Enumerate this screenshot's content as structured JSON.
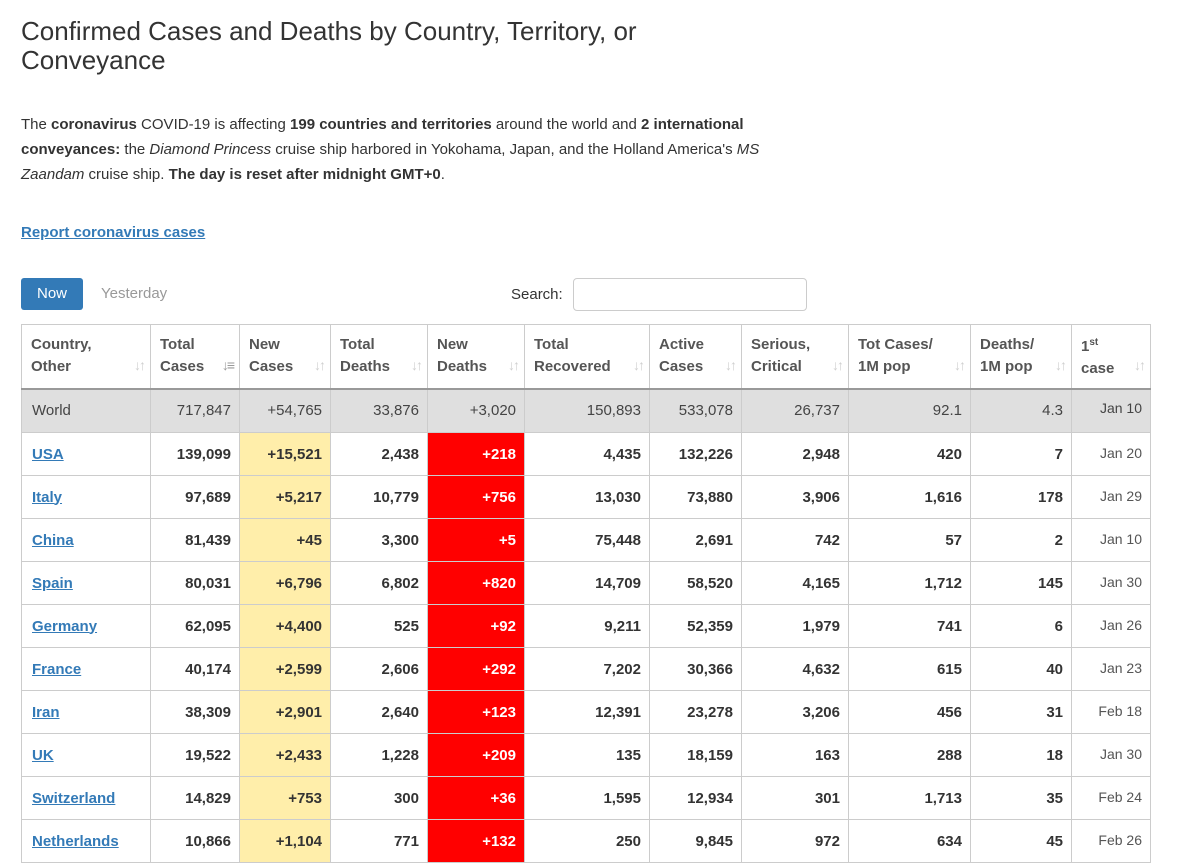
{
  "page": {
    "title": "Confirmed Cases and Deaths by Country, Territory, or Conveyance",
    "intro": {
      "p1": "The ",
      "b1": "coronavirus",
      "p2": " COVID-19 is affecting ",
      "b2": "199 countries and territories",
      "p3": " around the world and ",
      "b3": "2 international conveyances:",
      "p4": " the ",
      "i1": "Diamond Princess",
      "p5": " cruise ship harbored in Yokohama, Japan, and the Holland America's ",
      "i2": "MS Zaandam",
      "p6": " cruise ship. ",
      "b4": "The day is reset after midnight GMT+0",
      "p7": "."
    },
    "report_link": "Report coronavirus cases"
  },
  "tabs": {
    "now": "Now",
    "yesterday": "Yesterday",
    "active": "now"
  },
  "search": {
    "label": "Search:",
    "value": "",
    "placeholder": ""
  },
  "colors": {
    "link": "#337ab7",
    "new_cases_bg": "#ffeeaa",
    "new_deaths_bg": "#ff0000",
    "world_row_bg": "#dfdfdf"
  },
  "table": {
    "headers": [
      {
        "l1": "Country,",
        "l2": "Other",
        "sort": "none"
      },
      {
        "l1": "Total",
        "l2": "Cases",
        "sort": "desc"
      },
      {
        "l1": "New",
        "l2": "Cases",
        "sort": "none"
      },
      {
        "l1": "Total",
        "l2": "Deaths",
        "sort": "none"
      },
      {
        "l1": "New",
        "l2": "Deaths",
        "sort": "none"
      },
      {
        "l1": "Total",
        "l2": "Recovered",
        "sort": "none"
      },
      {
        "l1": "Active",
        "l2": "Cases",
        "sort": "none"
      },
      {
        "l1": "Serious,",
        "l2": "Critical",
        "sort": "none"
      },
      {
        "l1": "Tot Cases/",
        "l2": "1M pop",
        "sort": "none"
      },
      {
        "l1": "Deaths/",
        "l2": "1M pop",
        "sort": "none"
      },
      {
        "l1": "1",
        "sup": "st",
        "l2": "case",
        "sort": "none"
      }
    ],
    "world": {
      "country": "World",
      "total_cases": "717,847",
      "new_cases": "+54,765",
      "total_deaths": "33,876",
      "new_deaths": "+3,020",
      "total_recovered": "150,893",
      "active_cases": "533,078",
      "serious_critical": "26,737",
      "cases_per_1m": "92.1",
      "deaths_per_1m": "4.3",
      "first_case": "Jan 10"
    },
    "rows": [
      {
        "country": "USA",
        "total_cases": "139,099",
        "new_cases": "+15,521",
        "total_deaths": "2,438",
        "new_deaths": "+218",
        "total_recovered": "4,435",
        "active_cases": "132,226",
        "serious_critical": "2,948",
        "cases_per_1m": "420",
        "deaths_per_1m": "7",
        "first_case": "Jan 20"
      },
      {
        "country": "Italy",
        "total_cases": "97,689",
        "new_cases": "+5,217",
        "total_deaths": "10,779",
        "new_deaths": "+756",
        "total_recovered": "13,030",
        "active_cases": "73,880",
        "serious_critical": "3,906",
        "cases_per_1m": "1,616",
        "deaths_per_1m": "178",
        "first_case": "Jan 29"
      },
      {
        "country": "China",
        "total_cases": "81,439",
        "new_cases": "+45",
        "total_deaths": "3,300",
        "new_deaths": "+5",
        "total_recovered": "75,448",
        "active_cases": "2,691",
        "serious_critical": "742",
        "cases_per_1m": "57",
        "deaths_per_1m": "2",
        "first_case": "Jan 10"
      },
      {
        "country": "Spain",
        "total_cases": "80,031",
        "new_cases": "+6,796",
        "total_deaths": "6,802",
        "new_deaths": "+820",
        "total_recovered": "14,709",
        "active_cases": "58,520",
        "serious_critical": "4,165",
        "cases_per_1m": "1,712",
        "deaths_per_1m": "145",
        "first_case": "Jan 30"
      },
      {
        "country": "Germany",
        "total_cases": "62,095",
        "new_cases": "+4,400",
        "total_deaths": "525",
        "new_deaths": "+92",
        "total_recovered": "9,211",
        "active_cases": "52,359",
        "serious_critical": "1,979",
        "cases_per_1m": "741",
        "deaths_per_1m": "6",
        "first_case": "Jan 26"
      },
      {
        "country": "France",
        "total_cases": "40,174",
        "new_cases": "+2,599",
        "total_deaths": "2,606",
        "new_deaths": "+292",
        "total_recovered": "7,202",
        "active_cases": "30,366",
        "serious_critical": "4,632",
        "cases_per_1m": "615",
        "deaths_per_1m": "40",
        "first_case": "Jan 23"
      },
      {
        "country": "Iran",
        "total_cases": "38,309",
        "new_cases": "+2,901",
        "total_deaths": "2,640",
        "new_deaths": "+123",
        "total_recovered": "12,391",
        "active_cases": "23,278",
        "serious_critical": "3,206",
        "cases_per_1m": "456",
        "deaths_per_1m": "31",
        "first_case": "Feb 18"
      },
      {
        "country": "UK",
        "total_cases": "19,522",
        "new_cases": "+2,433",
        "total_deaths": "1,228",
        "new_deaths": "+209",
        "total_recovered": "135",
        "active_cases": "18,159",
        "serious_critical": "163",
        "cases_per_1m": "288",
        "deaths_per_1m": "18",
        "first_case": "Jan 30"
      },
      {
        "country": "Switzerland",
        "total_cases": "14,829",
        "new_cases": "+753",
        "total_deaths": "300",
        "new_deaths": "+36",
        "total_recovered": "1,595",
        "active_cases": "12,934",
        "serious_critical": "301",
        "cases_per_1m": "1,713",
        "deaths_per_1m": "35",
        "first_case": "Feb 24"
      },
      {
        "country": "Netherlands",
        "total_cases": "10,866",
        "new_cases": "+1,104",
        "total_deaths": "771",
        "new_deaths": "+132",
        "total_recovered": "250",
        "active_cases": "9,845",
        "serious_critical": "972",
        "cases_per_1m": "634",
        "deaths_per_1m": "45",
        "first_case": "Feb 26"
      }
    ]
  }
}
